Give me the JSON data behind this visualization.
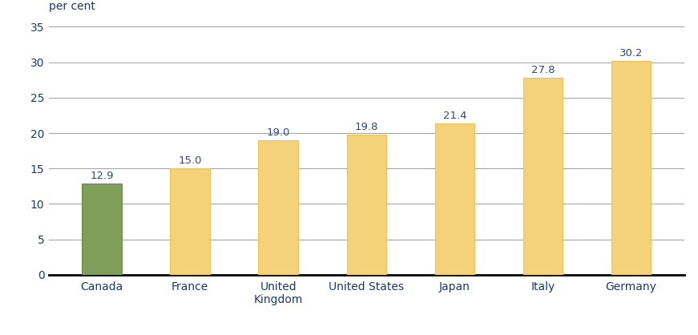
{
  "categories": [
    "Canada",
    "France",
    "United\nKingdom",
    "United States",
    "Japan",
    "Italy",
    "Germany"
  ],
  "values": [
    12.9,
    15.0,
    19.0,
    19.8,
    21.4,
    27.8,
    30.2
  ],
  "bar_colors": [
    "#7f9e5a",
    "#f5d279",
    "#f5d279",
    "#f5d279",
    "#f5d279",
    "#f5d279",
    "#f5d279"
  ],
  "bar_edge_colors": [
    "#6b8a4a",
    "#e8c45a",
    "#e8c45a",
    "#e8c45a",
    "#e8c45a",
    "#e8c45a",
    "#e8c45a"
  ],
  "ylabel": "per cent",
  "ylim": [
    0,
    35
  ],
  "yticks": [
    0,
    5,
    10,
    15,
    20,
    25,
    30,
    35
  ],
  "label_color": "#2b4a8a",
  "label_fontsize": 9.5,
  "ylabel_fontsize": 10,
  "tick_fontsize": 10,
  "grid_color": "#a0a0a0",
  "background_color": "#ffffff",
  "axis_line_color": "#000000",
  "bar_width": 0.45
}
